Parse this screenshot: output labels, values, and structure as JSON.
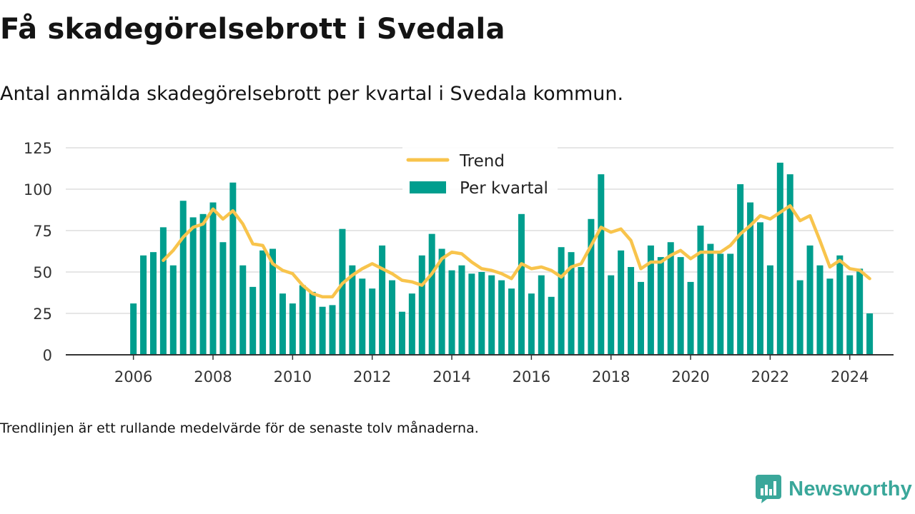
{
  "header": {
    "title": "Få skadegörelsebrott i Svedala",
    "subtitle": "Antal anmälda skadegörelsebrott per kvartal i Svedala kommun."
  },
  "footer": {
    "note": "Trendlinjen är ett rullande medelvärde för de senaste tolv månaderna.",
    "brand": "Newsworthy"
  },
  "colors": {
    "bar": "#009e8e",
    "trend": "#f8c44c",
    "grid": "#dedede",
    "axis": "#333333",
    "brand": "#3aa79a"
  },
  "chart_data": {
    "type": "bar",
    "grid": true,
    "legend_position": "top-center",
    "xlim": [
      2004.3,
      2025.1
    ],
    "ylim": [
      0,
      125
    ],
    "y_ticks": [
      0,
      25,
      50,
      75,
      100,
      125
    ],
    "x_ticks": [
      "2006",
      "2008",
      "2010",
      "2012",
      "2014",
      "2016",
      "2018",
      "2020",
      "2022",
      "2024"
    ],
    "x_tick_values": [
      2006,
      2008,
      2010,
      2012,
      2014,
      2016,
      2018,
      2020,
      2022,
      2024
    ],
    "series": [
      {
        "name": "Per kvartal",
        "type": "bar",
        "x": [
          2006.0,
          2006.25,
          2006.5,
          2006.75,
          2007.0,
          2007.25,
          2007.5,
          2007.75,
          2008.0,
          2008.25,
          2008.5,
          2008.75,
          2009.0,
          2009.25,
          2009.5,
          2009.75,
          2010.0,
          2010.25,
          2010.5,
          2010.75,
          2011.0,
          2011.25,
          2011.5,
          2011.75,
          2012.0,
          2012.25,
          2012.5,
          2012.75,
          2013.0,
          2013.25,
          2013.5,
          2013.75,
          2014.0,
          2014.25,
          2014.5,
          2014.75,
          2015.0,
          2015.25,
          2015.5,
          2015.75,
          2016.0,
          2016.25,
          2016.5,
          2016.75,
          2017.0,
          2017.25,
          2017.5,
          2017.75,
          2018.0,
          2018.25,
          2018.5,
          2018.75,
          2019.0,
          2019.25,
          2019.5,
          2019.75,
          2020.0,
          2020.25,
          2020.5,
          2020.75,
          2021.0,
          2021.25,
          2021.5,
          2021.75,
          2022.0,
          2022.25,
          2022.5,
          2022.75,
          2023.0,
          2023.25,
          2023.5,
          2023.75,
          2024.0,
          2024.25,
          2024.5
        ],
        "values": [
          31,
          60,
          62,
          77,
          54,
          93,
          83,
          85,
          92,
          68,
          104,
          54,
          41,
          63,
          64,
          37,
          31,
          42,
          38,
          29,
          30,
          76,
          54,
          46,
          40,
          66,
          45,
          26,
          37,
          60,
          73,
          64,
          51,
          54,
          49,
          50,
          48,
          45,
          40,
          85,
          37,
          48,
          35,
          65,
          62,
          53,
          82,
          109,
          48,
          63,
          53,
          44,
          66,
          59,
          68,
          59,
          44,
          78,
          67,
          61,
          61,
          103,
          92,
          80,
          54,
          116,
          109,
          45,
          66,
          54,
          46,
          60,
          48,
          52,
          25
        ]
      },
      {
        "name": "Trend",
        "type": "line",
        "x": [
          2006.75,
          2007.0,
          2007.25,
          2007.5,
          2007.75,
          2008.0,
          2008.25,
          2008.5,
          2008.75,
          2009.0,
          2009.25,
          2009.5,
          2009.75,
          2010.0,
          2010.25,
          2010.5,
          2010.75,
          2011.0,
          2011.25,
          2011.5,
          2011.75,
          2012.0,
          2012.25,
          2012.5,
          2012.75,
          2013.0,
          2013.25,
          2013.5,
          2013.75,
          2014.0,
          2014.25,
          2014.5,
          2014.75,
          2015.0,
          2015.25,
          2015.5,
          2015.75,
          2016.0,
          2016.25,
          2016.5,
          2016.75,
          2017.0,
          2017.25,
          2017.5,
          2017.75,
          2018.0,
          2018.25,
          2018.5,
          2018.75,
          2019.0,
          2019.25,
          2019.5,
          2019.75,
          2020.0,
          2020.25,
          2020.5,
          2020.75,
          2021.0,
          2021.25,
          2021.5,
          2021.75,
          2022.0,
          2022.25,
          2022.5,
          2022.75,
          2023.0,
          2023.25,
          2023.5,
          2023.75,
          2024.0,
          2024.25,
          2024.5
        ],
        "values": [
          57,
          63,
          71,
          77,
          79,
          88,
          82,
          87,
          79,
          67,
          66,
          55,
          51,
          49,
          42,
          37,
          35,
          35,
          43,
          48,
          52,
          55,
          52,
          49,
          45,
          44,
          42,
          49,
          58,
          62,
          61,
          56,
          52,
          51,
          49,
          46,
          55,
          52,
          53,
          51,
          47,
          53,
          55,
          66,
          77,
          74,
          76,
          69,
          52,
          56,
          56,
          60,
          63,
          58,
          62,
          62,
          62,
          66,
          73,
          78,
          84,
          82,
          86,
          90,
          81,
          84,
          69,
          53,
          57,
          52,
          51,
          46
        ]
      }
    ]
  }
}
